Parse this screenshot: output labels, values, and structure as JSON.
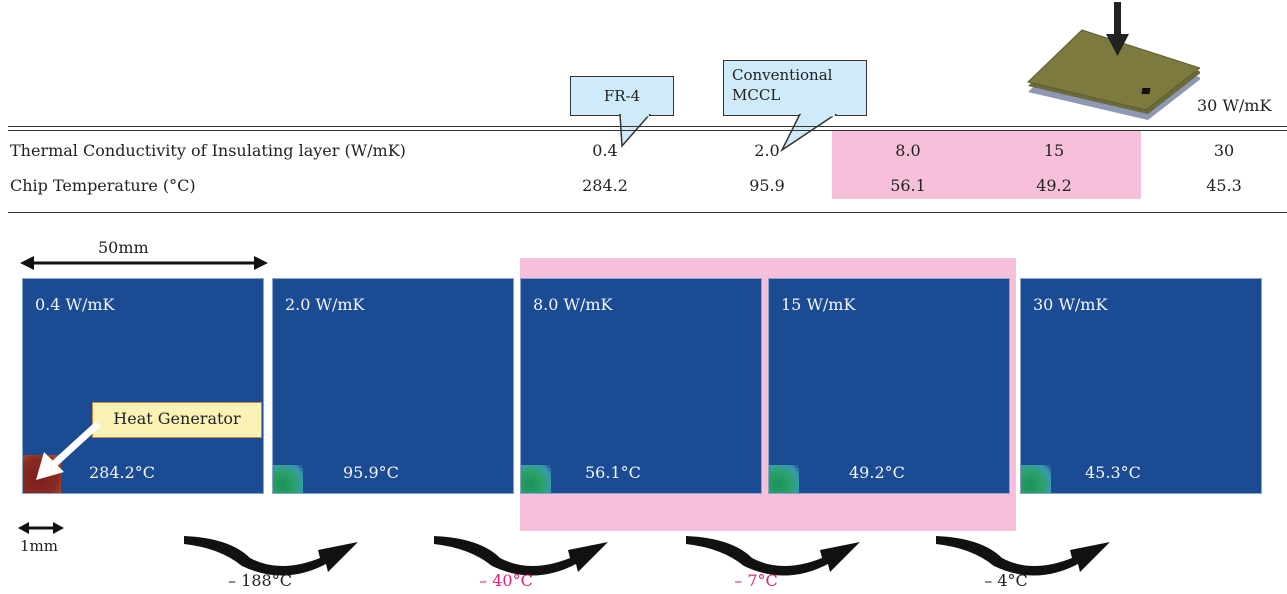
{
  "callouts": {
    "fr4": "FR-4",
    "mccl_line1": "Conventional",
    "mccl_line2": "MCCL",
    "board_label": "30 W/mK"
  },
  "table": {
    "rows": [
      {
        "label": "Thermal Conductivity of Insulating layer (W/mK)",
        "values": [
          "0.4",
          "2.0",
          "8.0",
          "15",
          "30"
        ]
      },
      {
        "label": "Chip Temperature (°C)",
        "values": [
          "284.2",
          "95.9",
          "56.1",
          "49.2",
          "45.3"
        ]
      }
    ],
    "highlight_color": "#f6c0da"
  },
  "dimensions": {
    "width_label": "50mm",
    "chip_label": "1mm"
  },
  "panels": [
    {
      "label": "0.4 W/mK",
      "temp": "284.2°C"
    },
    {
      "label": "2.0 W/mK",
      "temp": "95.9°C"
    },
    {
      "label": "8.0 W/mK",
      "temp": "56.1°C"
    },
    {
      "label": "15 W/mK",
      "temp": "49.2°C"
    },
    {
      "label": "30 W/mK",
      "temp": "45.3°C"
    }
  ],
  "heat_generator_label": "Heat Generator",
  "deltas": [
    {
      "text": "– 188°C",
      "color": "#222222"
    },
    {
      "text": "– 40°C",
      "color": "#e0207a"
    },
    {
      "text": "– 7°C",
      "color": "#e0207a"
    },
    {
      "text": "– 4°C",
      "color": "#222222"
    }
  ],
  "colors": {
    "panel_blue": "#1b4b93",
    "callout_blue": "#cfeaf8",
    "accent_pink": "#e0207a"
  }
}
